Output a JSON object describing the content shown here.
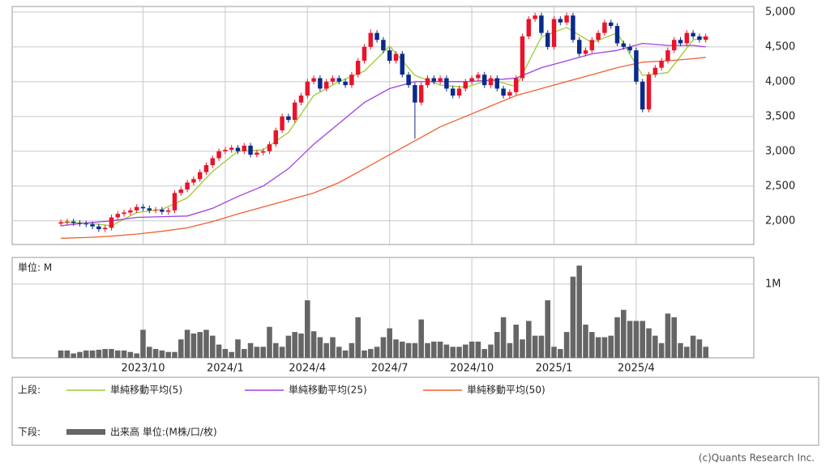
{
  "chart_data": {
    "type": "candlestick",
    "xlim": [
      -7.7,
      109.6
    ],
    "xticks": [
      {
        "value": 13,
        "label": "2023/10"
      },
      {
        "value": 26,
        "label": "2024/1"
      },
      {
        "value": 39,
        "label": "2024/4"
      },
      {
        "value": 52,
        "label": "2024/7"
      },
      {
        "value": 65,
        "label": "2024/10"
      },
      {
        "value": 78,
        "label": "2025/1"
      },
      {
        "value": 91,
        "label": "2025/4"
      }
    ],
    "ylim": [
      1660,
      5080
    ],
    "yticks": [
      {
        "value": 2000,
        "label": "2,000"
      },
      {
        "value": 2500,
        "label": "2,500"
      },
      {
        "value": 3000,
        "label": "3,000"
      },
      {
        "value": 3500,
        "label": "3,500"
      },
      {
        "value": 4000,
        "label": "4,000"
      },
      {
        "value": 4500,
        "label": "4,500"
      },
      {
        "value": 5000,
        "label": "5,000"
      }
    ],
    "grid": true,
    "up_color": "#e8142a",
    "down_color": "#0b2a8a",
    "candles": {
      "open": [
        1960,
        1980,
        1990,
        1970,
        1960,
        1950,
        1920,
        1880,
        1900,
        2050,
        2100,
        2120,
        2150,
        2200,
        2180,
        2150,
        2160,
        2130,
        2150,
        2400,
        2450,
        2550,
        2600,
        2700,
        2800,
        2900,
        3000,
        3020,
        3050,
        3000,
        3080,
        2950,
        2980,
        3000,
        3100,
        3300,
        3500,
        3450,
        3700,
        3800,
        4000,
        4050,
        3900,
        4000,
        4050,
        4000,
        3950,
        4100,
        4300,
        4500,
        4700,
        4600,
        4450,
        4300,
        4400,
        4100,
        3950,
        3700,
        3950,
        4050,
        4000,
        4050,
        3900,
        3800,
        3900,
        4000,
        4050,
        4100,
        3950,
        4050,
        3900,
        3800,
        3850,
        4050,
        4650,
        4900,
        4950,
        4700,
        4500,
        4900,
        4850,
        4950,
        4600,
        4400,
        4450,
        4600,
        4700,
        4850,
        4800,
        4550,
        4500,
        4450,
        4000,
        3600,
        4100,
        4200,
        4300,
        4450,
        4600,
        4550,
        4700,
        4650,
        4600
      ],
      "high": [
        2020,
        2030,
        2030,
        2010,
        2000,
        1990,
        1960,
        1940,
        2090,
        2140,
        2160,
        2190,
        2240,
        2240,
        2220,
        2200,
        2200,
        2190,
        2440,
        2490,
        2590,
        2640,
        2740,
        2840,
        2940,
        3040,
        3060,
        3090,
        3090,
        3120,
        3120,
        3020,
        3040,
        3140,
        3340,
        3540,
        3540,
        3740,
        3840,
        4040,
        4090,
        4090,
        4040,
        4090,
        4090,
        4040,
        4140,
        4340,
        4540,
        4750,
        4740,
        4640,
        4490,
        4440,
        4440,
        4140,
        3990,
        3990,
        4090,
        4090,
        4090,
        4090,
        3940,
        3940,
        4040,
        4090,
        4140,
        4140,
        4090,
        4090,
        3940,
        3890,
        4090,
        4690,
        4940,
        4990,
        4990,
        4740,
        4940,
        4940,
        4990,
        4990,
        4640,
        4490,
        4640,
        4740,
        4890,
        4890,
        4840,
        4590,
        4540,
        4490,
        4040,
        4140,
        4240,
        4340,
        4490,
        4640,
        4640,
        4740,
        4740,
        4690,
        4690
      ],
      "low": [
        1920,
        1940,
        1930,
        1920,
        1910,
        1880,
        1840,
        1840,
        1860,
        2010,
        2060,
        2080,
        2110,
        2140,
        2110,
        2110,
        2090,
        2090,
        2110,
        2360,
        2410,
        2510,
        2560,
        2660,
        2760,
        2860,
        2960,
        2980,
        2960,
        2960,
        2910,
        2910,
        2940,
        2960,
        3060,
        3260,
        3410,
        3410,
        3660,
        3760,
        3960,
        3860,
        3860,
        3960,
        3960,
        3910,
        3910,
        4060,
        4260,
        4460,
        4560,
        4410,
        4260,
        4260,
        4060,
        3910,
        3180,
        3660,
        3910,
        3960,
        3960,
        3860,
        3760,
        3760,
        3860,
        3960,
        4010,
        3910,
        3910,
        3860,
        3760,
        3760,
        3810,
        4010,
        4610,
        4860,
        4660,
        4460,
        4460,
        4810,
        4810,
        4560,
        4360,
        4360,
        4410,
        4560,
        4660,
        4760,
        4510,
        4460,
        4410,
        3960,
        3560,
        3560,
        4060,
        4160,
        4260,
        4410,
        4510,
        4510,
        4610,
        4560,
        4560
      ],
      "close": [
        1980,
        1990,
        1970,
        1960,
        1950,
        1920,
        1880,
        1900,
        2050,
        2100,
        2120,
        2150,
        2200,
        2180,
        2150,
        2160,
        2130,
        2150,
        2400,
        2450,
        2550,
        2600,
        2700,
        2800,
        2900,
        3000,
        3020,
        3050,
        3000,
        3080,
        2950,
        2980,
        3000,
        3100,
        3300,
        3500,
        3450,
        3700,
        3800,
        4000,
        4050,
        3900,
        4000,
        4050,
        4000,
        3950,
        4100,
        4300,
        4500,
        4700,
        4600,
        4450,
        4300,
        4400,
        4100,
        3950,
        3700,
        3950,
        4050,
        4000,
        4050,
        3900,
        3800,
        3900,
        4000,
        4050,
        4100,
        3950,
        4050,
        3900,
        3800,
        3850,
        4050,
        4650,
        4900,
        4950,
        4700,
        4500,
        4900,
        4850,
        4950,
        4600,
        4400,
        4450,
        4600,
        4700,
        4850,
        4800,
        4550,
        4500,
        4450,
        4000,
        3600,
        4100,
        4200,
        4300,
        4450,
        4600,
        4550,
        4700,
        4650,
        4600,
        4650
      ]
    },
    "ma_x": [
      0,
      4,
      8,
      12,
      16,
      20,
      24,
      28,
      32,
      36,
      40,
      44,
      48,
      52,
      56,
      60,
      64,
      68,
      72,
      76,
      80,
      84,
      88,
      92,
      96,
      100,
      102
    ],
    "series": [
      {
        "name": "単純移動平均(5)",
        "color": "#9acd32",
        "values": [
          1975,
          1970,
          1930,
          2120,
          2165,
          2330,
          2710,
          3000,
          3020,
          3270,
          3800,
          4000,
          4150,
          4510,
          4090,
          3950,
          3920,
          4030,
          3930,
          4640,
          4780,
          4560,
          4700,
          4090,
          4130,
          4600,
          4640
        ]
      },
      {
        "name": "単純移動平均(25)",
        "color": "#a040e0",
        "values": [
          1930,
          1970,
          2000,
          2050,
          2060,
          2070,
          2180,
          2350,
          2500,
          2750,
          3100,
          3400,
          3700,
          3900,
          4000,
          4000,
          4000,
          4020,
          4050,
          4200,
          4300,
          4400,
          4450,
          4550,
          4520,
          4520,
          4500
        ]
      },
      {
        "name": "単純移動平均(50)",
        "color": "#f06030",
        "values": [
          1750,
          1760,
          1780,
          1810,
          1850,
          1900,
          1990,
          2100,
          2200,
          2300,
          2400,
          2550,
          2750,
          2950,
          3150,
          3350,
          3500,
          3650,
          3800,
          3900,
          4000,
          4100,
          4200,
          4280,
          4300,
          4330,
          4350
        ]
      }
    ],
    "volume": {
      "unit_label": "単位: M",
      "name": "出来高 単位:(M株/口/枚)",
      "color": "#666666",
      "ylim": [
        0,
        1.36
      ],
      "yticks": [
        {
          "value": 1,
          "label": "1M"
        }
      ],
      "values": [
        0.1,
        0.1,
        0.06,
        0.08,
        0.1,
        0.1,
        0.11,
        0.12,
        0.12,
        0.1,
        0.1,
        0.08,
        0.06,
        0.38,
        0.15,
        0.12,
        0.1,
        0.08,
        0.08,
        0.25,
        0.38,
        0.33,
        0.35,
        0.38,
        0.3,
        0.18,
        0.12,
        0.08,
        0.25,
        0.12,
        0.2,
        0.15,
        0.15,
        0.42,
        0.2,
        0.15,
        0.3,
        0.35,
        0.33,
        0.78,
        0.36,
        0.28,
        0.2,
        0.28,
        0.15,
        0.1,
        0.2,
        0.55,
        0.1,
        0.12,
        0.15,
        0.28,
        0.4,
        0.25,
        0.22,
        0.2,
        0.2,
        0.52,
        0.2,
        0.22,
        0.22,
        0.18,
        0.15,
        0.15,
        0.18,
        0.22,
        0.22,
        0.12,
        0.18,
        0.35,
        0.55,
        0.2,
        0.45,
        0.25,
        0.5,
        0.3,
        0.3,
        0.78,
        0.15,
        0.12,
        0.35,
        1.1,
        1.25,
        0.45,
        0.35,
        0.28,
        0.28,
        0.3,
        0.55,
        0.65,
        0.5,
        0.5,
        0.5,
        0.4,
        0.3,
        0.2,
        0.6,
        0.55,
        0.2,
        0.15,
        0.3,
        0.25,
        0.15
      ]
    },
    "legend": {
      "upper": "上段:",
      "lower": "下段:"
    },
    "footer": "(c)Quants Research Inc."
  }
}
